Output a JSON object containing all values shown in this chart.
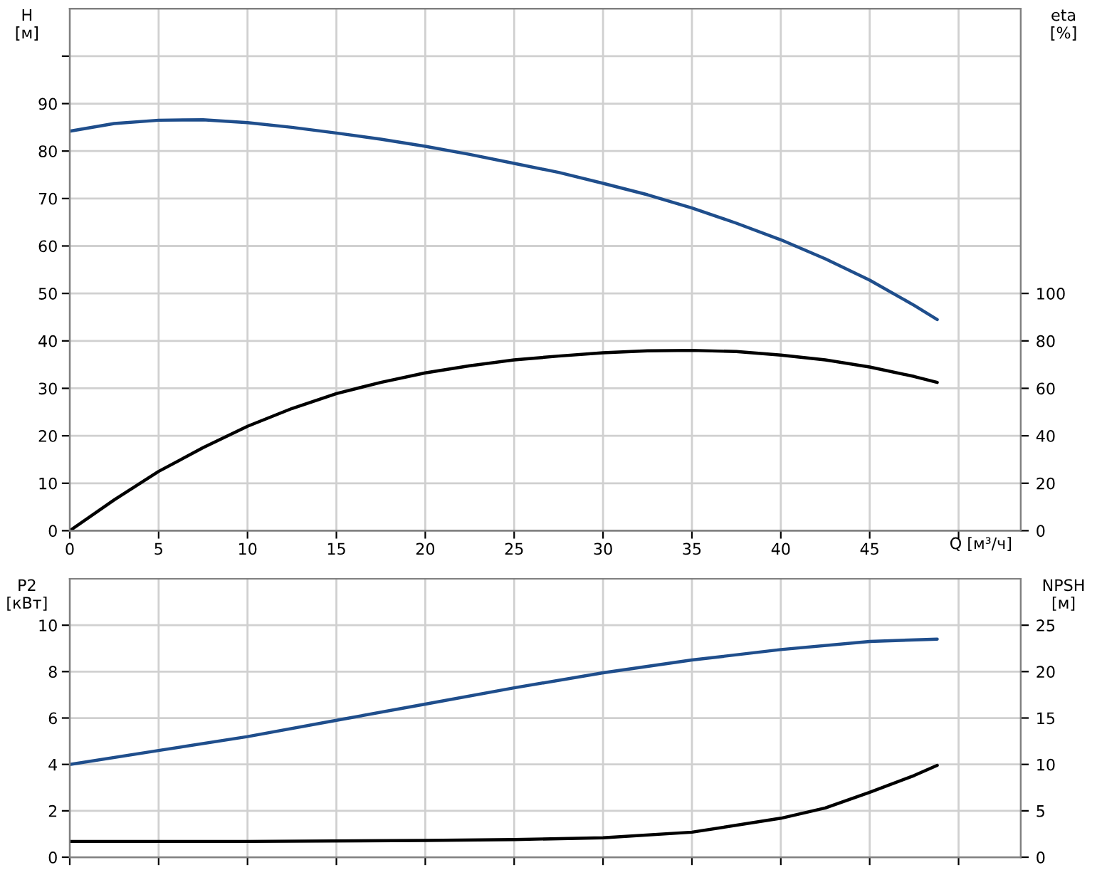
{
  "chart_data": [
    {
      "type": "line",
      "xlabel": "Q [м³/ч]",
      "ylabel": "H\n[м]",
      "y2label": "eta\n[%]",
      "grid": true,
      "xlim": [
        0,
        53.5
      ],
      "xticks": [
        0,
        5,
        10,
        15,
        20,
        25,
        30,
        35,
        40,
        45,
        {
          "value": 50,
          "label": null
        }
      ],
      "ylim": [
        0,
        110
      ],
      "yticks": [
        0,
        10,
        20,
        30,
        40,
        50,
        60,
        70,
        80,
        90,
        {
          "value": 100,
          "label": null
        }
      ],
      "y2lim": [
        0,
        220
      ],
      "y2ticks": [
        0,
        20,
        40,
        60,
        80,
        100
      ],
      "series": [
        {
          "color": "#1f4e8c",
          "x": [
            0,
            2.5,
            5,
            7.5,
            10,
            12.5,
            15,
            17.5,
            20,
            22.5,
            25,
            27.5,
            30,
            32.5,
            35,
            37.5,
            40,
            42.5,
            45,
            47.5,
            48.8
          ],
          "values": [
            84.2,
            85.8,
            86.5,
            86.6,
            86,
            85,
            83.8,
            82.5,
            81,
            79.3,
            77.4,
            75.5,
            73.2,
            70.8,
            68,
            64.8,
            61.3,
            57.3,
            52.8,
            47.5,
            44.5
          ]
        },
        {
          "color": "#000000",
          "axis": "y2",
          "x": [
            0,
            2.5,
            5,
            7.5,
            10,
            12.5,
            15,
            17.5,
            20,
            22.5,
            25,
            27.5,
            30,
            32.5,
            35,
            37.5,
            40,
            42.5,
            45,
            47.5,
            48.8
          ],
          "values": [
            0,
            13,
            25,
            35,
            44,
            51.5,
            57.8,
            62.5,
            66.5,
            69.5,
            72,
            73.6,
            75,
            75.8,
            76,
            75.5,
            74,
            72,
            69,
            65,
            62.5
          ]
        }
      ]
    },
    {
      "type": "line",
      "ylabel": "P2\n[кВт]",
      "y2label": "NPSH\n[м]",
      "grid": true,
      "tick_labels": "y",
      "xlim": [
        0,
        53.5
      ],
      "xticks": [
        0,
        5,
        10,
        15,
        20,
        25,
        30,
        35,
        40,
        45,
        50
      ],
      "ylim": [
        0,
        12
      ],
      "yticks": [
        0,
        2,
        4,
        6,
        8,
        10
      ],
      "y2lim": [
        0,
        30
      ],
      "y2ticks": [
        0,
        5,
        10,
        15,
        20,
        25
      ],
      "series": [
        {
          "color": "#1f4e8c",
          "x": [
            0,
            5,
            10,
            15,
            20,
            25,
            30,
            35,
            40,
            45,
            48.8
          ],
          "values": [
            4.0,
            4.6,
            5.2,
            5.9,
            6.6,
            7.3,
            7.95,
            8.5,
            8.95,
            9.3,
            9.4
          ]
        },
        {
          "color": "#000000",
          "axis": "y2",
          "x": [
            0,
            10,
            20,
            25,
            30,
            35,
            40,
            42.5,
            45,
            47.5,
            48.8
          ],
          "values": [
            1.7,
            1.7,
            1.8,
            1.9,
            2.1,
            2.7,
            4.2,
            5.3,
            7.0,
            8.8,
            9.9
          ]
        }
      ]
    }
  ]
}
